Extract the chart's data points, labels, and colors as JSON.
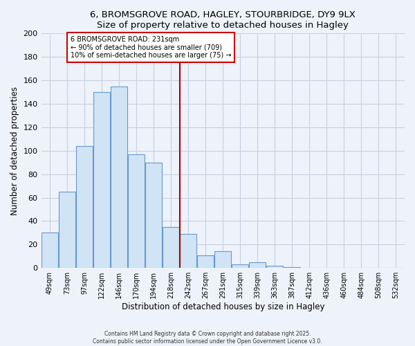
{
  "title": "6, BROMSGROVE ROAD, HAGLEY, STOURBRIDGE, DY9 9LX",
  "subtitle": "Size of property relative to detached houses in Hagley",
  "xlabel": "Distribution of detached houses by size in Hagley",
  "ylabel": "Number of detached properties",
  "bar_labels": [
    "49sqm",
    "73sqm",
    "97sqm",
    "122sqm",
    "146sqm",
    "170sqm",
    "194sqm",
    "218sqm",
    "242sqm",
    "267sqm",
    "291sqm",
    "315sqm",
    "339sqm",
    "363sqm",
    "387sqm",
    "412sqm",
    "436sqm",
    "460sqm",
    "484sqm",
    "508sqm",
    "532sqm"
  ],
  "bar_values": [
    30,
    65,
    104,
    150,
    155,
    97,
    90,
    35,
    29,
    11,
    14,
    3,
    5,
    2,
    1,
    0,
    0,
    0,
    0,
    0,
    0
  ],
  "bar_color": "#d0e4f5",
  "bar_edge_color": "#6699cc",
  "vline_color": "#aa0000",
  "annotation_title": "6 BROMSGROVE ROAD: 231sqm",
  "annotation_line1": "← 90% of detached houses are smaller (709)",
  "annotation_line2": "10% of semi-detached houses are larger (75) →",
  "annotation_box_color": "white",
  "annotation_box_edge": "#cc0000",
  "ylim": [
    0,
    200
  ],
  "yticks": [
    0,
    20,
    40,
    60,
    80,
    100,
    120,
    140,
    160,
    180,
    200
  ],
  "footer1": "Contains HM Land Registry data © Crown copyright and database right 2025.",
  "footer2": "Contains public sector information licensed under the Open Government Licence v3.0.",
  "background_color": "#eef2fa",
  "grid_color": "#c8d0e0"
}
